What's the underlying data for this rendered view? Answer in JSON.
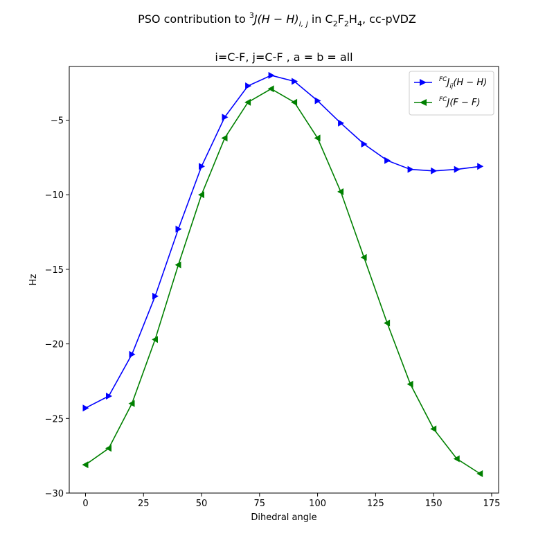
{
  "chart_data": {
    "type": "line",
    "title_prefix": "PSO contribution to ",
    "title_sup": "3",
    "title_j": "J",
    "title_paren": "(H − H)",
    "title_sub": "i, j",
    "title_in": " in C",
    "title_c_sub": "2",
    "title_f": "F",
    "title_f_sub": "2",
    "title_h": "H",
    "title_h_sub": "4",
    "title_suffix": ", cc-pVDZ",
    "subtitle": "i=C-F, j=C-F , a = b = all",
    "xlabel": "Dihedral angle",
    "ylabel": "Hz",
    "xlim": [
      -7,
      178
    ],
    "ylim": [
      -30,
      -1.4
    ],
    "xticks": [
      0,
      25,
      50,
      75,
      100,
      125,
      150,
      175
    ],
    "yticks": [
      -30,
      -25,
      -20,
      -15,
      -10,
      -5
    ],
    "ytick_labels": [
      "−30",
      "−25",
      "−20",
      "−15",
      "−10",
      "−5"
    ],
    "xtick_labels": [
      "0",
      "25",
      "50",
      "75",
      "100",
      "125",
      "150",
      "175"
    ],
    "legend_position": "top-right",
    "x": [
      0,
      10,
      20,
      30,
      40,
      50,
      60,
      70,
      80,
      90,
      100,
      110,
      120,
      130,
      140,
      150,
      160,
      170
    ],
    "series": [
      {
        "legend_sup": "FC",
        "legend_main": "J",
        "legend_sub": "ij",
        "legend_tail": "(H − H)",
        "color": "#0000ff",
        "marker": "triangle-right",
        "values": [
          -24.3,
          -23.5,
          -20.7,
          -16.8,
          -12.3,
          -8.1,
          -4.8,
          -2.7,
          -2.0,
          -2.4,
          -3.7,
          -5.2,
          -6.6,
          -7.7,
          -8.3,
          -8.4,
          -8.3,
          -8.1
        ]
      },
      {
        "legend_sup": "FC",
        "legend_main": "J",
        "legend_sub": "",
        "legend_tail": "(F − F)",
        "color": "#008000",
        "marker": "triangle-left",
        "values": [
          -28.1,
          -27.0,
          -24.0,
          -19.7,
          -14.7,
          -10.0,
          -6.2,
          -3.8,
          -2.9,
          -3.8,
          -6.2,
          -9.8,
          -14.2,
          -18.6,
          -22.7,
          -25.7,
          -27.7,
          -28.7
        ]
      }
    ]
  }
}
